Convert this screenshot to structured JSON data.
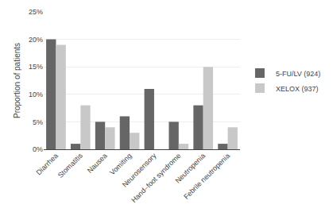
{
  "chart_data": {
    "type": "bar",
    "categories": [
      "Diarrhea",
      "Stomatitis",
      "Nausea",
      "Vomiting",
      "Neurosensory",
      "Hand–foot syndrome",
      "Neutropenia",
      "Febrile neutropenia"
    ],
    "series": [
      {
        "name": "5-FU/LV (924)",
        "color": "#666666",
        "values": [
          20,
          1,
          5,
          6,
          11,
          5,
          8,
          1
        ]
      },
      {
        "name": "XELOX (937)",
        "color": "#c8c8c8",
        "values": [
          19,
          8,
          4,
          3,
          0,
          1,
          15,
          4
        ]
      }
    ],
    "ylabel": "Proportion of patients",
    "ylim": [
      0,
      25
    ],
    "yticks": [
      {
        "value": 0,
        "label": "0%"
      },
      {
        "value": 5,
        "label": "5%"
      },
      {
        "value": 10,
        "label": "10%"
      },
      {
        "value": 15,
        "label": "15%"
      },
      {
        "value": 20,
        "label": "20%"
      },
      {
        "value": 25,
        "label": "25%"
      }
    ],
    "grid": true,
    "legend": "right"
  }
}
